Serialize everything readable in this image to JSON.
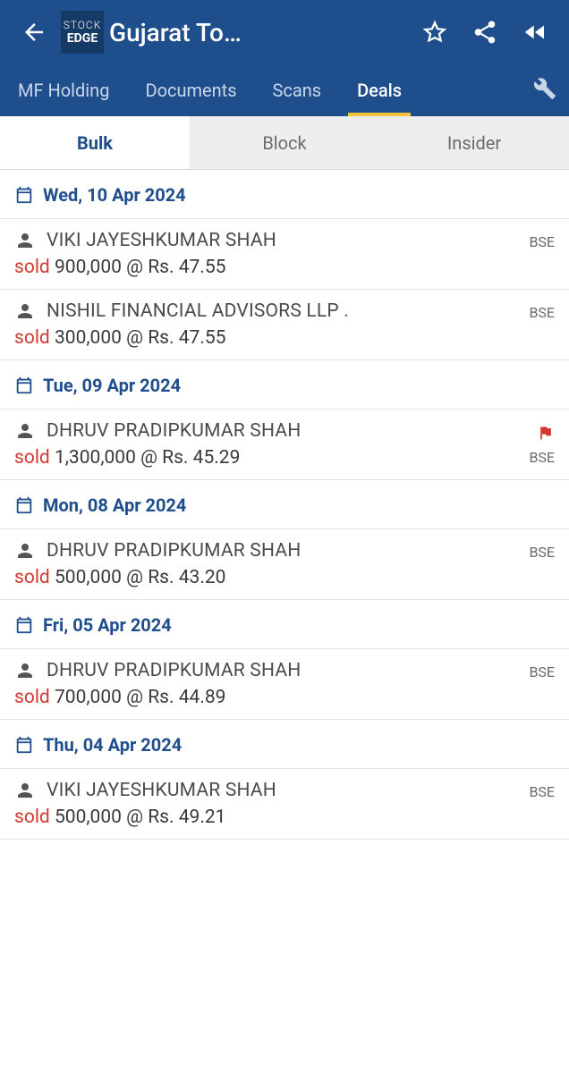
{
  "header": {
    "title": "Gujarat To…",
    "logo_line1": "STOCK",
    "logo_line2": "EDGE"
  },
  "nav": {
    "items": [
      {
        "label": "MF Holding",
        "active": false
      },
      {
        "label": "Documents",
        "active": false
      },
      {
        "label": "Scans",
        "active": false
      },
      {
        "label": "Deals",
        "active": true
      }
    ]
  },
  "subtabs": [
    {
      "label": "Bulk",
      "active": true
    },
    {
      "label": "Block",
      "active": false
    },
    {
      "label": "Insider",
      "active": false
    }
  ],
  "groups": [
    {
      "date": "Wed, 10 Apr 2024",
      "deals": [
        {
          "name": "VIKI JAYESHKUMAR SHAH",
          "action": "sold",
          "qty": "900,000",
          "price": "47.55",
          "exchange": "BSE",
          "flag": false
        },
        {
          "name": "NISHIL FINANCIAL ADVISORS LLP .",
          "action": "sold",
          "qty": "300,000",
          "price": "47.55",
          "exchange": "BSE",
          "flag": false
        }
      ]
    },
    {
      "date": "Tue, 09 Apr 2024",
      "deals": [
        {
          "name": "DHRUV PRADIPKUMAR SHAH",
          "action": "sold",
          "qty": "1,300,000",
          "price": "45.29",
          "exchange": "BSE",
          "flag": true
        }
      ]
    },
    {
      "date": "Mon, 08 Apr 2024",
      "deals": [
        {
          "name": "DHRUV PRADIPKUMAR SHAH",
          "action": "sold",
          "qty": "500,000",
          "price": "43.20",
          "exchange": "BSE",
          "flag": false
        }
      ]
    },
    {
      "date": "Fri, 05 Apr 2024",
      "deals": [
        {
          "name": "DHRUV PRADIPKUMAR SHAH",
          "action": "sold",
          "qty": "700,000",
          "price": "44.89",
          "exchange": "BSE",
          "flag": false
        }
      ]
    },
    {
      "date": "Thu, 04 Apr 2024",
      "deals": [
        {
          "name": "VIKI JAYESHKUMAR SHAH",
          "action": "sold",
          "qty": "500,000",
          "price": "49.21",
          "exchange": "BSE",
          "flag": false
        }
      ]
    }
  ],
  "colors": {
    "appbar_bg": "#1f4e8c",
    "accent_underline": "#f5c23b",
    "link_blue": "#1f4e8c",
    "sold_red": "#d23a2e",
    "subtab_inactive_bg": "#eeeeee",
    "border": "#e3e3e3"
  },
  "labels": {
    "price_prefix": "Rs."
  }
}
